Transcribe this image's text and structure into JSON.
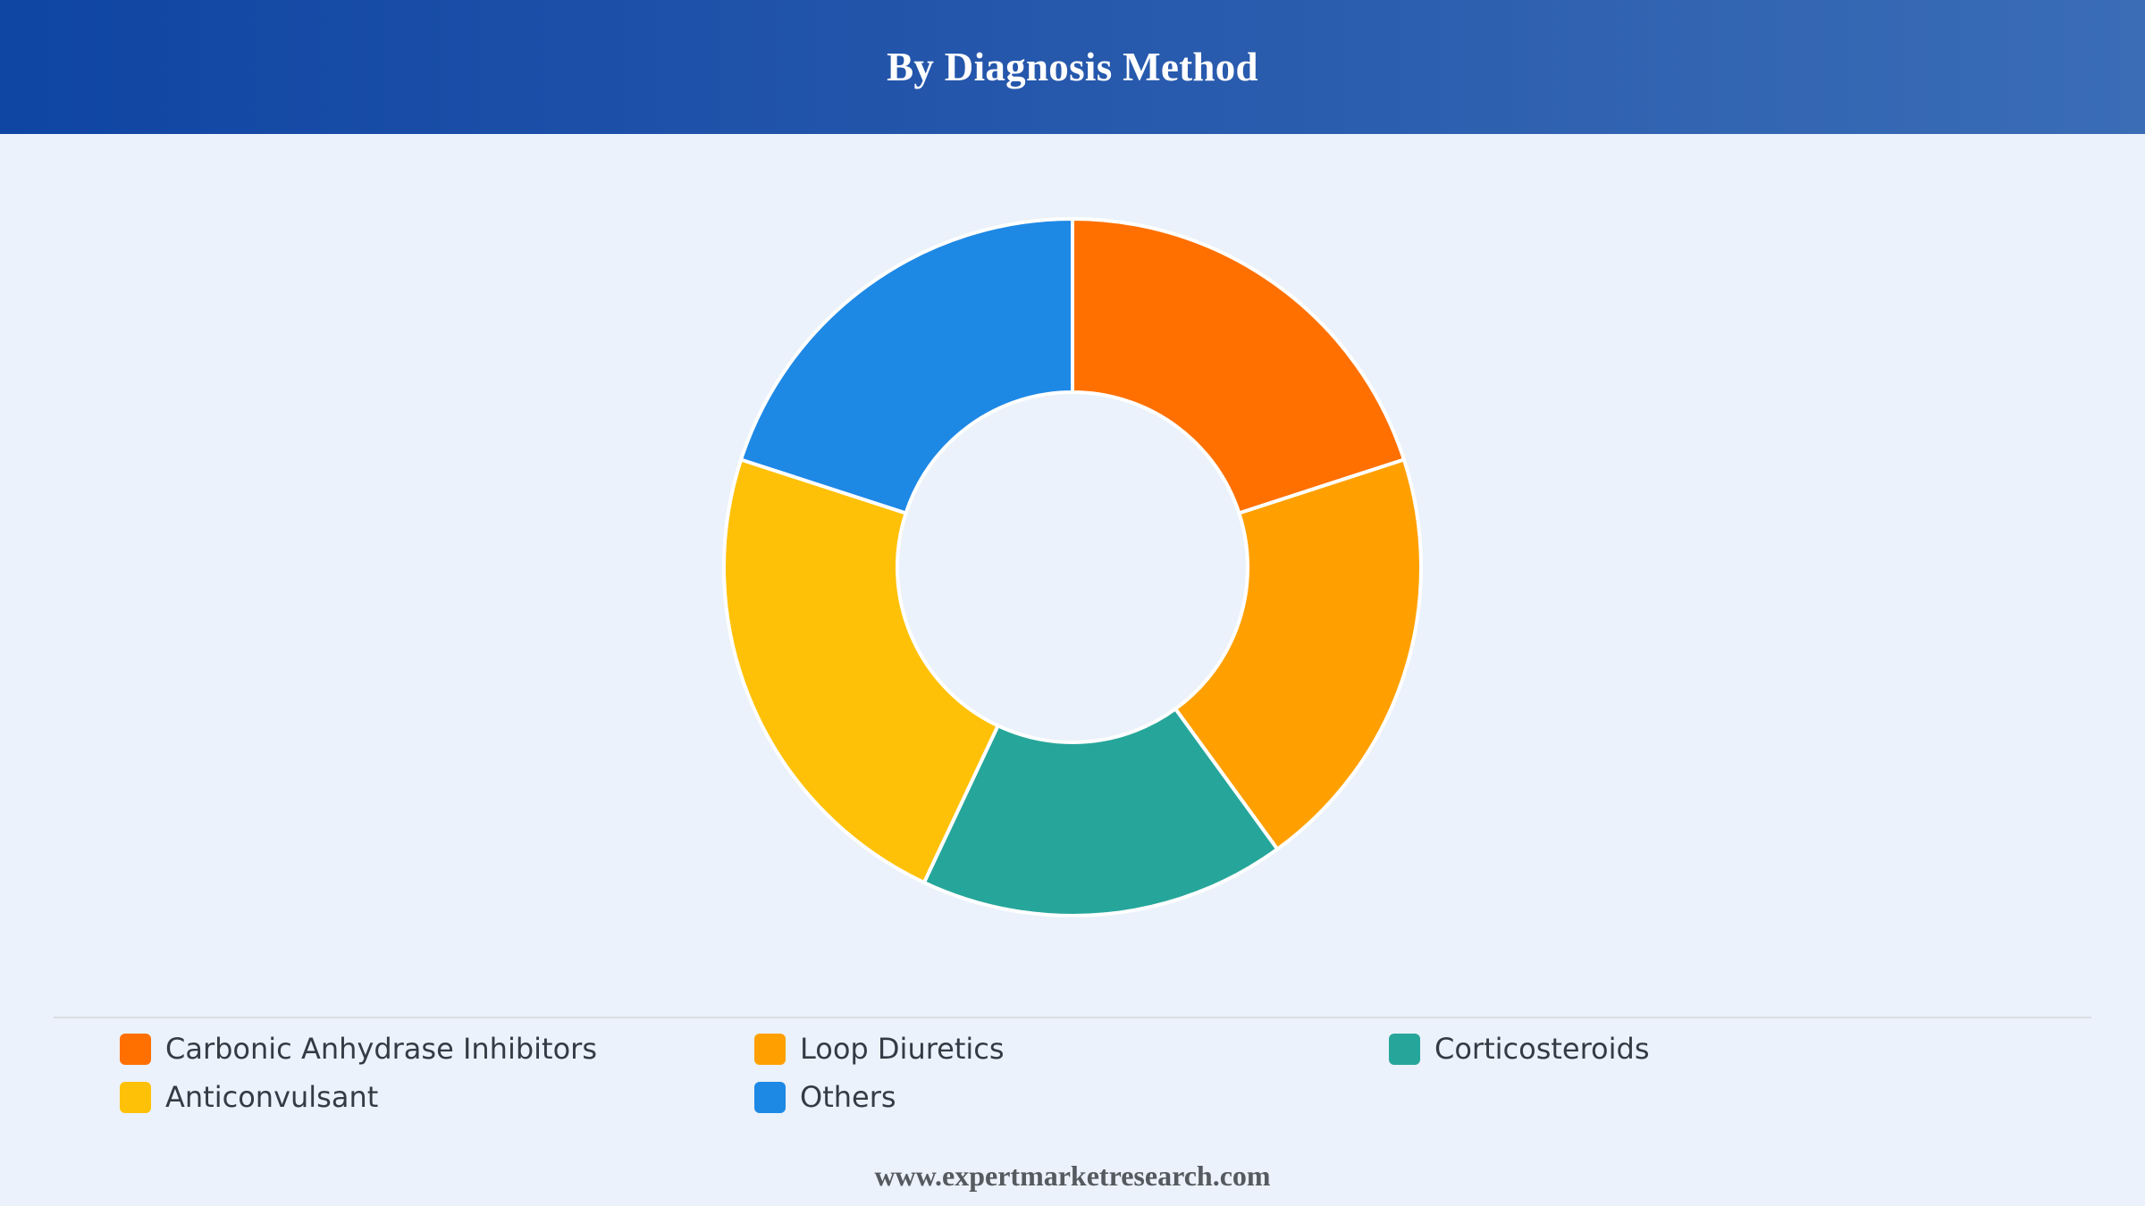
{
  "header": {
    "title": "By Diagnosis Method"
  },
  "chart_data": {
    "type": "pie",
    "donut": true,
    "title": "By Diagnosis Method",
    "categories": [
      "Carbonic Anhydrase Inhibitors",
      "Loop Diuretics",
      "Corticosteroids",
      "Anticonvulsant",
      "Others"
    ],
    "values": [
      20,
      20,
      17,
      23,
      20
    ],
    "colors": [
      "#ff7000",
      "#ffa000",
      "#26a69a",
      "#ffc107",
      "#1e88e5"
    ],
    "legend_position": "bottom"
  },
  "footer": {
    "source": "www.expertmarketresearch.com"
  }
}
